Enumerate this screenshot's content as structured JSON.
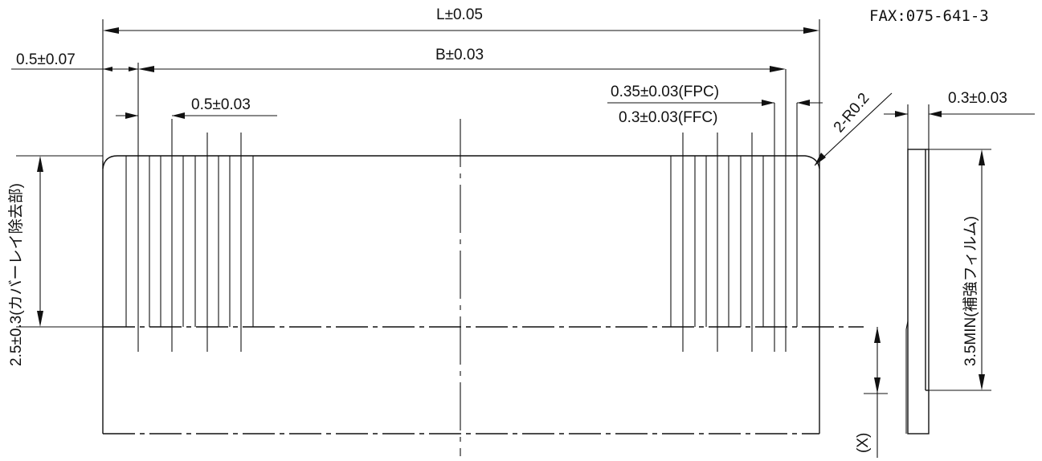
{
  "header": {
    "fax": "FAX:075-641-3"
  },
  "dimensions": {
    "overall_length": "L±0.05",
    "pitch_span": "B±0.03",
    "edge_offset": "0.5±0.07",
    "pitch": "0.5±0.03",
    "conductor_width_fpc": "0.35±0.03(FPC)",
    "conductor_width_ffc": "0.3±0.03(FFC)",
    "corner_radius": "2-R0.2",
    "thickness": "0.3±0.03",
    "exposed_length": "2.5±0.3(カバーレイ除去部)",
    "stiffener_length": "3.5MIN(補強フィルム)",
    "x_dim": "(X)"
  }
}
